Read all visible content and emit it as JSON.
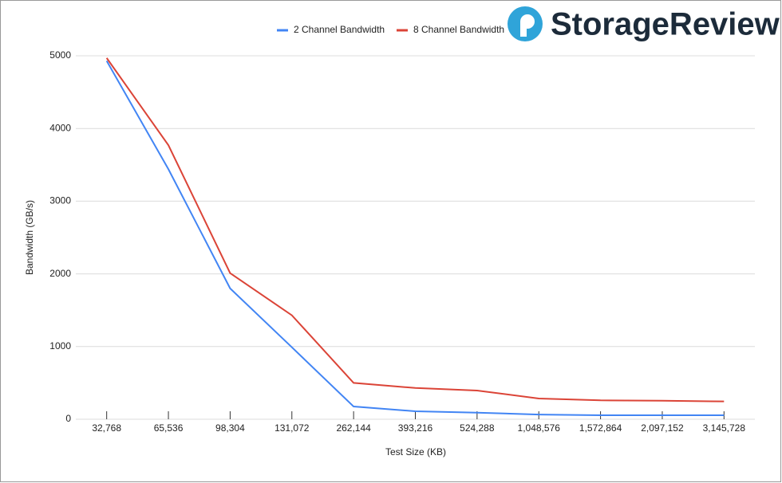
{
  "logo_text": "StorageReview",
  "chart_data": {
    "type": "line",
    "x_label": "Test Size (KB)",
    "y_label": "Bandwidth (GB/s)",
    "categories": [
      "32,768",
      "65,536",
      "98,304",
      "131,072",
      "262,144",
      "393,216",
      "524,288",
      "1,048,576",
      "1,572,864",
      "2,097,152",
      "3,145,728"
    ],
    "series": [
      {
        "name": "2 Channel Bandwidth",
        "color": "#4285f4",
        "values": [
          4930,
          3440,
          1800,
          990,
          175,
          110,
          90,
          65,
          55,
          55,
          55
        ]
      },
      {
        "name": "8 Channel Bandwidth",
        "color": "#db4437",
        "values": [
          4970,
          3770,
          2010,
          1430,
          500,
          430,
          395,
          285,
          260,
          255,
          245
        ]
      }
    ],
    "ylim": [
      0,
      5000
    ],
    "yticks": [
      0,
      1000,
      2000,
      3000,
      4000,
      5000
    ],
    "grid": true,
    "legend": "top"
  }
}
